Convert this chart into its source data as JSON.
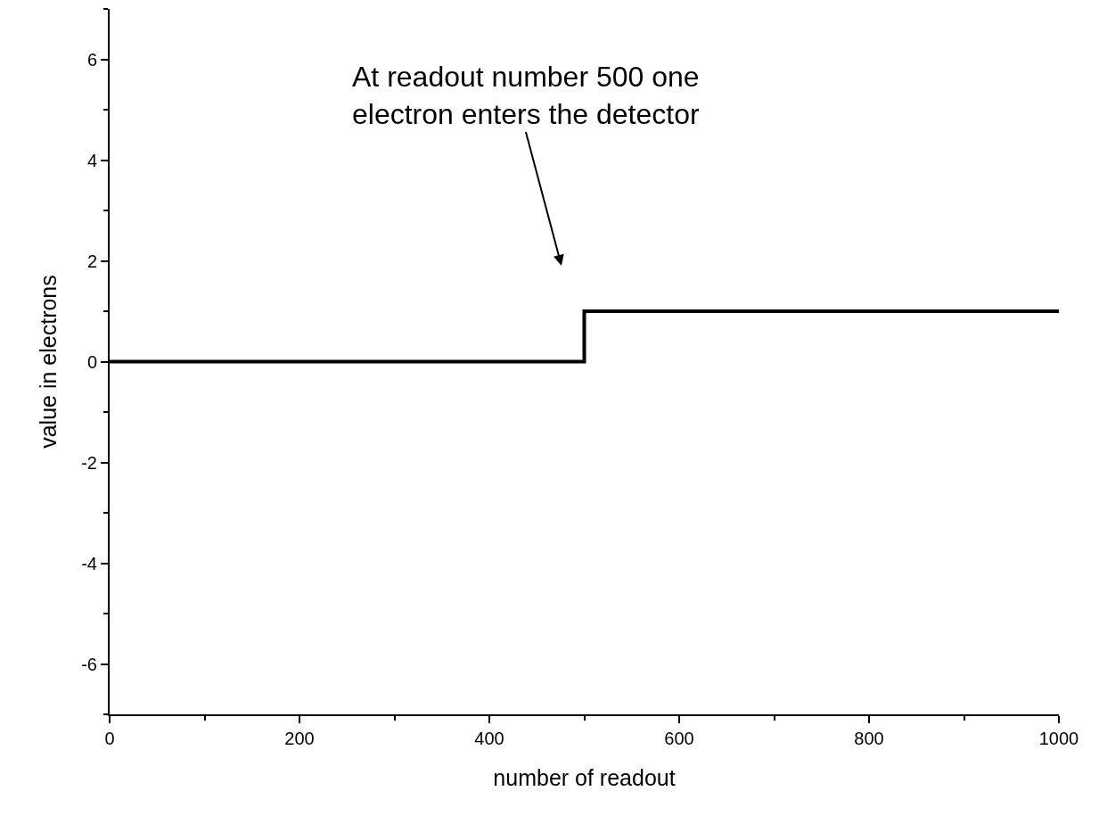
{
  "chart_data": {
    "type": "step",
    "xlabel": "number of readout",
    "ylabel": "value in electrons",
    "x": [
      0,
      500,
      1000
    ],
    "series": [
      {
        "color": "#000000",
        "values": [
          0,
          1,
          1
        ]
      }
    ],
    "xlim": [
      0,
      1000
    ],
    "xticks": [
      0,
      200,
      400,
      600,
      800,
      1000
    ],
    "ylim": [
      -7,
      7
    ],
    "yticks": [
      -6,
      -4,
      -2,
      0,
      2,
      4,
      6
    ],
    "marker": "none",
    "line_style": "solid",
    "annotations": [
      "At readout number 500 one\nelectron enters the detector"
    ]
  }
}
